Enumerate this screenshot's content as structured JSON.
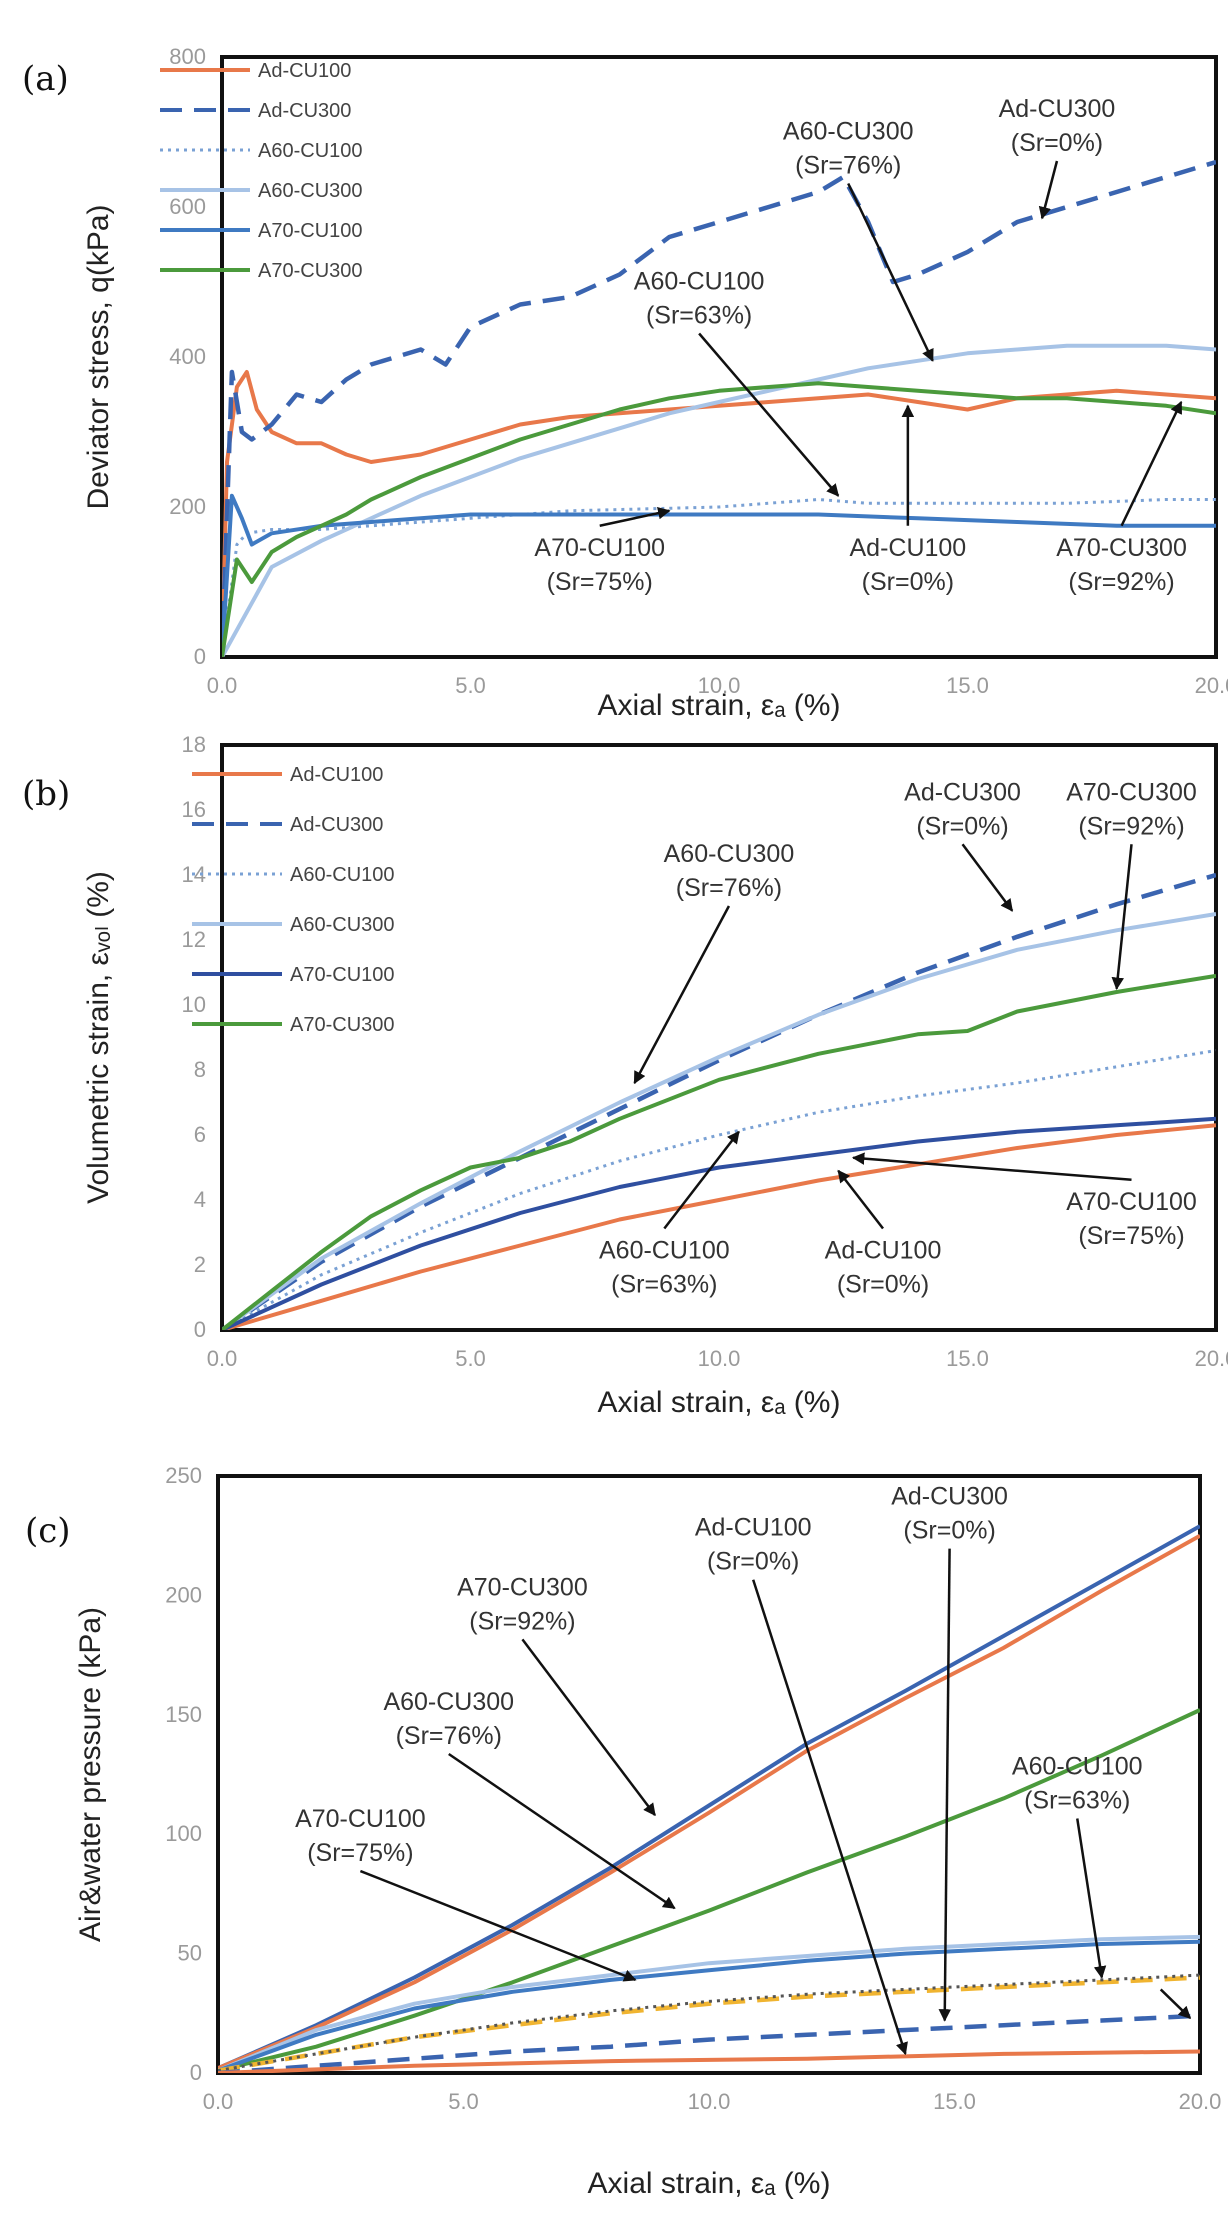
{
  "chart_data": [
    {
      "type": "line",
      "panel_label": "(a)",
      "xlabel": "Axial strain, εₐ (%)",
      "ylabel": "Deviator stress,  q(kPa)",
      "xlim": [
        0,
        20
      ],
      "ylim": [
        0,
        800
      ],
      "x_ticks": [
        "0.0",
        "5.0",
        "10.0",
        "15.0",
        "20.0"
      ],
      "y_ticks": [
        "0",
        "200",
        "400",
        "600",
        "800"
      ],
      "legend_position": "top-left",
      "series": [
        {
          "name": "Ad-CU100",
          "color": "#e8784a",
          "style": "solid",
          "x": [
            0,
            0.1,
            0.3,
            0.5,
            0.7,
            1.0,
            1.5,
            2.0,
            2.5,
            3.0,
            4.0,
            5.0,
            6.0,
            7.0,
            8.0,
            9.0,
            10.0,
            11.0,
            12.0,
            13.0,
            14.0,
            15.0,
            16.0,
            17.0,
            18.0,
            19.0,
            20.0
          ],
          "y": [
            0,
            260,
            360,
            380,
            330,
            300,
            285,
            285,
            270,
            260,
            270,
            290,
            310,
            320,
            325,
            330,
            335,
            340,
            345,
            350,
            340,
            330,
            345,
            350,
            355,
            350,
            345
          ]
        },
        {
          "name": "Ad-CU300",
          "color": "#3a64b0",
          "style": "dash",
          "x": [
            0,
            0.2,
            0.4,
            0.6,
            1.0,
            1.5,
            2.0,
            2.5,
            3.0,
            4.0,
            4.5,
            5.0,
            6.0,
            7.0,
            8.0,
            9.0,
            10.0,
            11.0,
            12.0,
            12.5,
            13.0,
            13.5,
            14.0,
            15.0,
            16.0,
            17.0,
            18.0,
            19.0,
            20.0
          ],
          "y": [
            0,
            380,
            300,
            290,
            310,
            350,
            340,
            370,
            390,
            410,
            390,
            440,
            470,
            480,
            510,
            560,
            580,
            600,
            620,
            640,
            580,
            500,
            510,
            540,
            580,
            600,
            620,
            640,
            660
          ]
        },
        {
          "name": "A60-CU100",
          "color": "#7aa1d4",
          "style": "dot",
          "x": [
            0,
            0.3,
            0.5,
            1.0,
            2.0,
            3.0,
            5.0,
            7.0,
            10.0,
            12.0,
            13.0,
            15.0,
            17.0,
            19.0,
            20.0
          ],
          "y": [
            0,
            150,
            165,
            170,
            170,
            175,
            185,
            195,
            200,
            210,
            205,
            205,
            205,
            210,
            210
          ]
        },
        {
          "name": "A60-CU300",
          "color": "#a7c3e6",
          "style": "solid",
          "x": [
            0,
            1.0,
            2.0,
            3.0,
            4.0,
            5.0,
            6.0,
            7.0,
            8.0,
            9.0,
            10.0,
            11.0,
            12.0,
            13.0,
            14.0,
            15.0,
            16.0,
            17.0,
            18.0,
            19.0,
            20.0
          ],
          "y": [
            0,
            120,
            155,
            185,
            215,
            240,
            265,
            285,
            305,
            325,
            340,
            355,
            370,
            385,
            395,
            405,
            410,
            415,
            415,
            415,
            410
          ]
        },
        {
          "name": "A70-CU100",
          "color": "#3f7ac2",
          "style": "solid",
          "x": [
            0,
            0.2,
            0.4,
            0.6,
            1.0,
            2.0,
            3.0,
            5.0,
            7.0,
            10.0,
            12.0,
            14.0,
            16.0,
            18.0,
            20.0
          ],
          "y": [
            0,
            215,
            185,
            150,
            165,
            175,
            180,
            190,
            190,
            190,
            190,
            185,
            180,
            175,
            175
          ]
        },
        {
          "name": "A70-CU300",
          "color": "#4b9a3c",
          "style": "solid",
          "x": [
            0,
            0.3,
            0.6,
            1.0,
            1.5,
            2.0,
            2.5,
            3.0,
            4.0,
            5.0,
            6.0,
            7.0,
            8.0,
            9.0,
            10.0,
            11.0,
            12.0,
            13.0,
            14.0,
            15.0,
            16.0,
            17.0,
            18.0,
            19.0,
            20.0
          ],
          "y": [
            0,
            130,
            100,
            140,
            160,
            175,
            190,
            210,
            240,
            265,
            290,
            310,
            330,
            345,
            355,
            360,
            365,
            360,
            355,
            350,
            345,
            345,
            340,
            335,
            325
          ]
        }
      ],
      "annotations": [
        {
          "lines": [
            "A60-CU300",
            "(Sr=76%)"
          ],
          "x": 12.6,
          "y": 690,
          "to_x": 14.3,
          "to_y": 395
        },
        {
          "lines": [
            "Ad-CU300",
            "(Sr=0%)"
          ],
          "x": 16.8,
          "y": 720,
          "to_x": 16.5,
          "to_y": 585
        },
        {
          "lines": [
            "A60-CU100",
            "(Sr=63%)"
          ],
          "x": 9.6,
          "y": 490,
          "to_x": 12.4,
          "to_y": 215
        },
        {
          "lines": [
            "A70-CU100",
            "(Sr=75%)"
          ],
          "x": 7.6,
          "y": 135,
          "to_x": 9.0,
          "to_y": 195
        },
        {
          "lines": [
            "Ad-CU100",
            "(Sr=0%)"
          ],
          "x": 13.8,
          "y": 135,
          "to_x": 13.8,
          "to_y": 335
        },
        {
          "lines": [
            "A70-CU300",
            "(Sr=92%)"
          ],
          "x": 18.1,
          "y": 135,
          "to_x": 19.3,
          "to_y": 340
        }
      ]
    },
    {
      "type": "line",
      "panel_label": "(b)",
      "xlabel": "Axial strain, εₐ (%)",
      "ylabel": "Volumetric strain, εᵥₒₗ (%)",
      "xlim": [
        0,
        20
      ],
      "ylim": [
        0,
        18
      ],
      "x_ticks": [
        "0.0",
        "5.0",
        "10.0",
        "15.0",
        "20.0"
      ],
      "y_ticks": [
        "0",
        "2",
        "4",
        "6",
        "8",
        "10",
        "12",
        "14",
        "16",
        "18"
      ],
      "legend_position": "top-left",
      "series": [
        {
          "name": "Ad-CU100",
          "color": "#e8784a",
          "style": "solid",
          "x": [
            0,
            2,
            4,
            6,
            8,
            10,
            12,
            14,
            16,
            18,
            20
          ],
          "y": [
            0,
            0.9,
            1.8,
            2.6,
            3.4,
            4.0,
            4.6,
            5.1,
            5.6,
            6.0,
            6.3
          ]
        },
        {
          "name": "Ad-CU300",
          "color": "#3a64b0",
          "style": "dash",
          "x": [
            0,
            2,
            4,
            6,
            8,
            10,
            12,
            14,
            16,
            18,
            20
          ],
          "y": [
            0,
            2.1,
            3.8,
            5.3,
            6.8,
            8.3,
            9.7,
            11.0,
            12.1,
            13.1,
            14.0
          ]
        },
        {
          "name": "A60-CU100",
          "color": "#7aa1d4",
          "style": "dot",
          "x": [
            0,
            2,
            4,
            6,
            8,
            10,
            12,
            14,
            16,
            18,
            20
          ],
          "y": [
            0,
            1.7,
            3.0,
            4.2,
            5.2,
            6.0,
            6.7,
            7.2,
            7.6,
            8.1,
            8.6
          ]
        },
        {
          "name": "A60-CU300",
          "color": "#a7c3e6",
          "style": "solid",
          "x": [
            0,
            2,
            4,
            6,
            8,
            10,
            12,
            14,
            16,
            18,
            20
          ],
          "y": [
            0,
            2.2,
            3.9,
            5.5,
            7.0,
            8.4,
            9.7,
            10.8,
            11.7,
            12.3,
            12.8
          ]
        },
        {
          "name": "A70-CU100",
          "color": "#2f4fa0",
          "style": "solid",
          "x": [
            0,
            2,
            4,
            6,
            8,
            10,
            12,
            14,
            16,
            18,
            20
          ],
          "y": [
            0,
            1.4,
            2.6,
            3.6,
            4.4,
            5.0,
            5.4,
            5.8,
            6.1,
            6.3,
            6.5
          ]
        },
        {
          "name": "A70-CU300",
          "color": "#4b9a3c",
          "style": "solid",
          "x": [
            0,
            1,
            2,
            3,
            4,
            5,
            6,
            7,
            8,
            9,
            10,
            12,
            14,
            15,
            16,
            18,
            20
          ],
          "y": [
            0,
            1.2,
            2.4,
            3.5,
            4.3,
            5.0,
            5.3,
            5.8,
            6.5,
            7.1,
            7.7,
            8.5,
            9.1,
            9.2,
            9.8,
            10.4,
            10.9
          ]
        }
      ],
      "annotations": [
        {
          "lines": [
            "Ad-CU300",
            "(Sr=0%)"
          ],
          "x": 14.9,
          "y": 16.3,
          "to_x": 15.9,
          "to_y": 12.9
        },
        {
          "lines": [
            "A70-CU300",
            "(Sr=92%)"
          ],
          "x": 18.3,
          "y": 16.3,
          "to_x": 18.0,
          "to_y": 10.5
        },
        {
          "lines": [
            "A60-CU300",
            "(Sr=76%)"
          ],
          "x": 10.2,
          "y": 14.4,
          "to_x": 8.3,
          "to_y": 7.6
        },
        {
          "lines": [
            "A60-CU100",
            "(Sr=63%)"
          ],
          "x": 8.9,
          "y": 2.2,
          "to_x": 10.4,
          "to_y": 6.1
        },
        {
          "lines": [
            "Ad-CU100",
            "(Sr=0%)"
          ],
          "x": 13.3,
          "y": 2.2,
          "to_x": 12.4,
          "to_y": 4.9
        },
        {
          "lines": [
            "A70-CU100",
            "(Sr=75%)"
          ],
          "x": 18.3,
          "y": 3.7,
          "to_x": 12.7,
          "to_y": 5.3
        }
      ]
    },
    {
      "type": "line",
      "panel_label": "(c)",
      "xlabel": "Axial strain, εₐ (%)",
      "ylabel": "Air&water pressure (kPa)",
      "xlim": [
        0,
        20
      ],
      "ylim": [
        0,
        250
      ],
      "x_ticks": [
        "0.0",
        "5.0",
        "10.0",
        "15.0",
        "20.0"
      ],
      "y_ticks": [
        "0",
        "50",
        "100",
        "150",
        "200",
        "250"
      ],
      "series": [
        {
          "color": "#3a64b0",
          "style": "solid",
          "x": [
            0,
            2,
            4,
            6,
            8,
            10,
            12,
            14,
            16,
            18,
            20
          ],
          "y": [
            2,
            20,
            40,
            62,
            86,
            112,
            138,
            160,
            183,
            206,
            229
          ]
        },
        {
          "color": "#e8784a",
          "style": "solid",
          "x": [
            0,
            2,
            4,
            6,
            8,
            10,
            12,
            14,
            16,
            18,
            20
          ],
          "y": [
            2,
            19,
            38,
            60,
            84,
            109,
            135,
            157,
            178,
            202,
            225
          ]
        },
        {
          "color": "#4b9a3c",
          "style": "solid",
          "x": [
            0,
            2,
            4,
            6,
            8,
            10,
            12,
            14,
            16,
            18,
            20
          ],
          "y": [
            1,
            11,
            24,
            38,
            53,
            68,
            84,
            99,
            115,
            133,
            152
          ]
        },
        {
          "color": "#a7c3e6",
          "style": "solid",
          "x": [
            0,
            2,
            4,
            6,
            8,
            10,
            12,
            14,
            16,
            18,
            20
          ],
          "y": [
            1,
            18,
            29,
            36,
            41,
            46,
            49,
            52,
            54,
            56,
            57
          ]
        },
        {
          "color": "#3f7ac2",
          "style": "solid",
          "x": [
            0,
            2,
            4,
            6,
            8,
            10,
            12,
            14,
            16,
            18,
            20
          ],
          "y": [
            1,
            16,
            27,
            34,
            39,
            43,
            47,
            50,
            52,
            54,
            55
          ]
        },
        {
          "color": "#f0b430",
          "style": "dash",
          "x": [
            0,
            2,
            4,
            6,
            8,
            10,
            12,
            14,
            16,
            18,
            20
          ],
          "y": [
            1,
            8,
            15,
            20,
            25,
            29,
            32,
            34,
            36,
            38,
            40
          ]
        },
        {
          "color": "#555555",
          "style": "dot",
          "x": [
            0,
            2,
            4,
            6,
            8,
            10,
            12,
            14,
            16,
            18,
            20
          ],
          "y": [
            1,
            8,
            15,
            21,
            26,
            30,
            33,
            35,
            37,
            39,
            41
          ]
        },
        {
          "color": "#3a64b0",
          "style": "dash",
          "x": [
            0,
            2,
            4,
            6,
            8,
            10,
            12,
            14,
            16,
            18,
            20
          ],
          "y": [
            0,
            3,
            6,
            9,
            11,
            14,
            16,
            18,
            20,
            22,
            24
          ]
        },
        {
          "color": "#e8784a",
          "style": "solid",
          "x": [
            0,
            4,
            8,
            12,
            16,
            20
          ],
          "y": [
            0,
            3,
            5,
            6,
            8,
            9
          ]
        }
      ],
      "annotations": [
        {
          "lines": [
            "Ad-CU300",
            "(Sr=0%)"
          ],
          "x": 14.9,
          "y": 238,
          "to_x": 14.8,
          "to_y": 22
        },
        {
          "lines": [
            "Ad-CU100",
            "(Sr=0%)"
          ],
          "x": 10.9,
          "y": 225,
          "to_x": 14.0,
          "to_y": 8
        },
        {
          "lines": [
            "A70-CU300",
            "(Sr=92%)"
          ],
          "x": 6.2,
          "y": 200,
          "to_x": 8.9,
          "to_y": 108
        },
        {
          "lines": [
            "A60-CU300",
            "(Sr=76%)"
          ],
          "x": 4.7,
          "y": 152,
          "to_x": 9.3,
          "to_y": 69
        },
        {
          "lines": [
            "A70-CU100",
            "(Sr=75%)"
          ],
          "x": 2.9,
          "y": 103,
          "to_x": 8.5,
          "to_y": 39
        },
        {
          "lines": [
            "A60-CU100",
            "(Sr=63%)"
          ],
          "x": 17.5,
          "y": 125,
          "to_x": 18.0,
          "to_y": 40
        },
        {
          "lines": [],
          "x": 19.2,
          "y": 35,
          "to_x": 19.8,
          "to_y": 23
        }
      ]
    }
  ]
}
